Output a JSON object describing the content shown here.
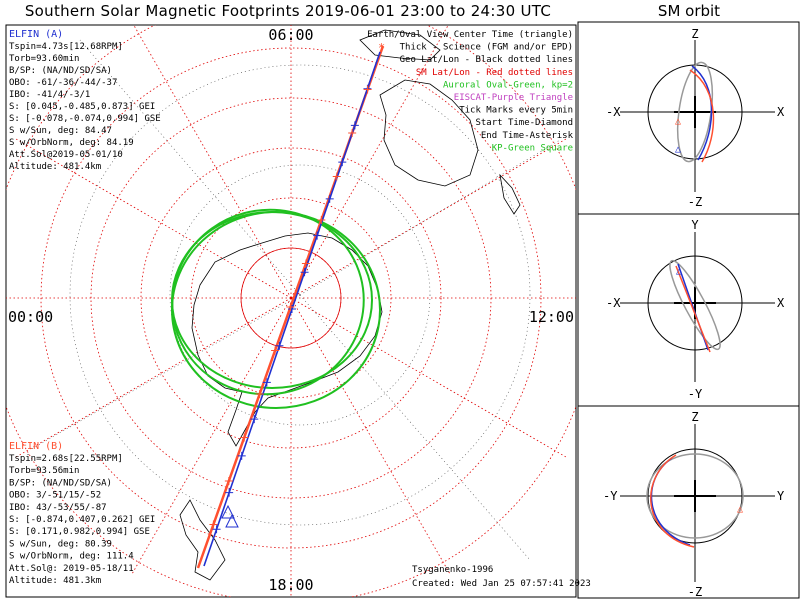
{
  "title": "Southern Solar Magnetic Footprints 2019-06-01 23:00 to 24:30 UTC",
  "sm_title": "SM orbit",
  "map": {
    "mlt_labels": {
      "top": "06:00",
      "left": "00:00",
      "right": "12:00",
      "bottom": "18:00"
    }
  },
  "elfin_a": {
    "name": "ELFIN (A)",
    "color": "#2030d0",
    "lines": [
      "Tspin=4.73s[12.68RPM]",
      "Torb=93.60min",
      "B/SP: (NA/ND/SD/SA)",
      "OBO: -61/-36/-44/-37",
      "IBO: -41/4/-3/1",
      "S: [0.045,-0.485,0.873] GEI",
      "S: [-0.078,-0.074,0.994] GSE",
      "S w/Sun, deg: 84.47",
      "S w/OrbNorm, deg: 84.19",
      "Att.Sol@2019-05-01/10",
      "Altitude: 481.4km"
    ]
  },
  "elfin_b": {
    "name": "ELFIN (B)",
    "color": "#ff5030",
    "lines": [
      "Tspin=2.68s[22.55RPM]",
      "Torb=93.56min",
      "B/SP: (NA/ND/SD/SA)",
      "OBO: 3/-51/15/-52",
      "IBO: 43/-53/55/-87",
      "S: [-0.874,0.407,0.262] GEI",
      "S: [0.171,0.982,0.994] GSE",
      "S w/Sun, deg: 80.39",
      "S w/OrbNorm, deg: 111.4",
      "Att.Sol@: 2019-05-18/11",
      "Altitude: 481.3km"
    ]
  },
  "legend": [
    {
      "text": "Earth/Oval View Center Time (triangle)",
      "color": "#000000"
    },
    {
      "text": "Thick - Science (FGM and/or EPD)",
      "color": "#000000"
    },
    {
      "text": "Geo Lat/Lon - Black dotted lines",
      "color": "#000000"
    },
    {
      "text": "SM Lat/Lon - Red dotted lines",
      "color": "#e00000"
    },
    {
      "text": "Auroral Oval-Green, kp=2",
      "color": "#20c020"
    },
    {
      "text": "EISCAT-Purple Triangle",
      "color": "#c040c0"
    },
    {
      "text": "Tick Marks every 5min",
      "color": "#000000"
    },
    {
      "text": "Start Time-Diamond",
      "color": "#000000"
    },
    {
      "text": "End Time-Asterisk",
      "color": "#000000"
    },
    {
      "text": "KP-Green Square",
      "color": "#20c020"
    }
  ],
  "credits": {
    "model": "Tsyganenko-1996",
    "created": "Created: Wed Jan 25 07:57:41 2023"
  },
  "orbit_panels": [
    {
      "name": "xz",
      "top": "Z",
      "bottom": "-Z",
      "left": "-X",
      "right": "X"
    },
    {
      "name": "xy",
      "top": "Y",
      "bottom": "-Y",
      "left": "-X",
      "right": "X"
    },
    {
      "name": "yz",
      "top": "Z",
      "bottom": "-Z",
      "left": "-Y",
      "right": "Y"
    }
  ]
}
